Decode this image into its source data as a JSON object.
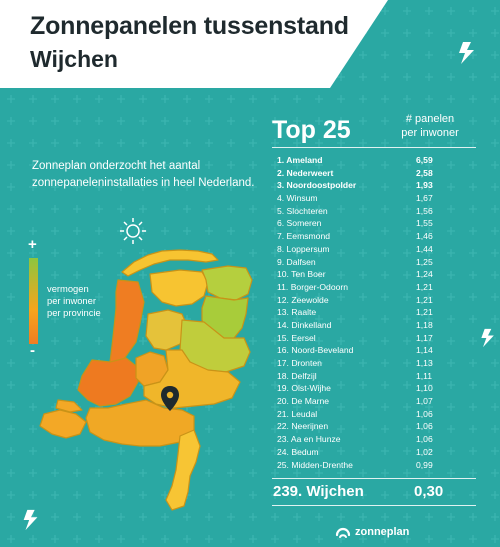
{
  "header": {
    "title": "Zonnepanelen tussenstand",
    "subtitle": "Wijchen"
  },
  "intro": "Zonneplan onderzocht het aantal zonnepaneleninstallaties in heel Nederland.",
  "legend": {
    "plus": "+",
    "minus": "-",
    "lines": [
      "vermogen",
      "per inwoner",
      "per provincie"
    ],
    "gradient_colors": [
      "#8cc63f",
      "#f7a51c",
      "#ef7d22"
    ]
  },
  "ranking": {
    "title": "Top 25",
    "column_header": [
      "# panelen",
      "per inwoner"
    ],
    "items": [
      {
        "name": "1. Ameland",
        "value": "6,59",
        "bold": true
      },
      {
        "name": "2. Nederweert",
        "value": "2,58",
        "bold": true
      },
      {
        "name": "3. Noordoostpolder",
        "value": "1,93",
        "bold": true
      },
      {
        "name": "4. Winsum",
        "value": "1,67",
        "bold": false
      },
      {
        "name": "5. Slochteren",
        "value": "1,56",
        "bold": false
      },
      {
        "name": "6. Someren",
        "value": "1,55",
        "bold": false
      },
      {
        "name": "7. Eemsmond",
        "value": "1,46",
        "bold": false
      },
      {
        "name": "8. Loppersum",
        "value": "1,44",
        "bold": false
      },
      {
        "name": "9. Dalfsen",
        "value": "1,25",
        "bold": false
      },
      {
        "name": "10. Ten Boer",
        "value": "1,24",
        "bold": false
      },
      {
        "name": "11. Borger-Odoorn",
        "value": "1,21",
        "bold": false
      },
      {
        "name": "12. Zeewolde",
        "value": "1,21",
        "bold": false
      },
      {
        "name": "13. Raalte",
        "value": "1,21",
        "bold": false
      },
      {
        "name": "14. Dinkelland",
        "value": "1,18",
        "bold": false
      },
      {
        "name": "15. Eersel",
        "value": "1,17",
        "bold": false
      },
      {
        "name": "16. Noord-Beveland",
        "value": "1,14",
        "bold": false
      },
      {
        "name": "17. Dronten",
        "value": "1,13",
        "bold": false
      },
      {
        "name": "18. Delfzijl",
        "value": "1,11",
        "bold": false
      },
      {
        "name": "19. Olst-Wijhe",
        "value": "1,10",
        "bold": false
      },
      {
        "name": "20. De Marne",
        "value": "1,07",
        "bold": false
      },
      {
        "name": "21. Leudal",
        "value": "1,06",
        "bold": false
      },
      {
        "name": "22. Neerijnen",
        "value": "1,06",
        "bold": false
      },
      {
        "name": "23. Aa en Hunze",
        "value": "1,06",
        "bold": false
      },
      {
        "name": "24. Bedum",
        "value": "1,02",
        "bold": false
      },
      {
        "name": "25. Midden-Drenthe",
        "value": "0,99",
        "bold": false
      }
    ],
    "highlight": {
      "name": "239. Wijchen",
      "value": "0,30"
    }
  },
  "brand": {
    "name": "zonneplan",
    "icon": "zonneplan-logo-icon"
  },
  "map": {
    "marker": "location-pin-icon",
    "sun_icon": "sun-icon"
  },
  "colors": {
    "background": "#2aa8a3",
    "banner": "#ffffff",
    "title_text": "#1f2a2e",
    "province_green": "#8cc63f",
    "province_yellow": "#f7c431",
    "province_orange": "#ef7d22"
  }
}
